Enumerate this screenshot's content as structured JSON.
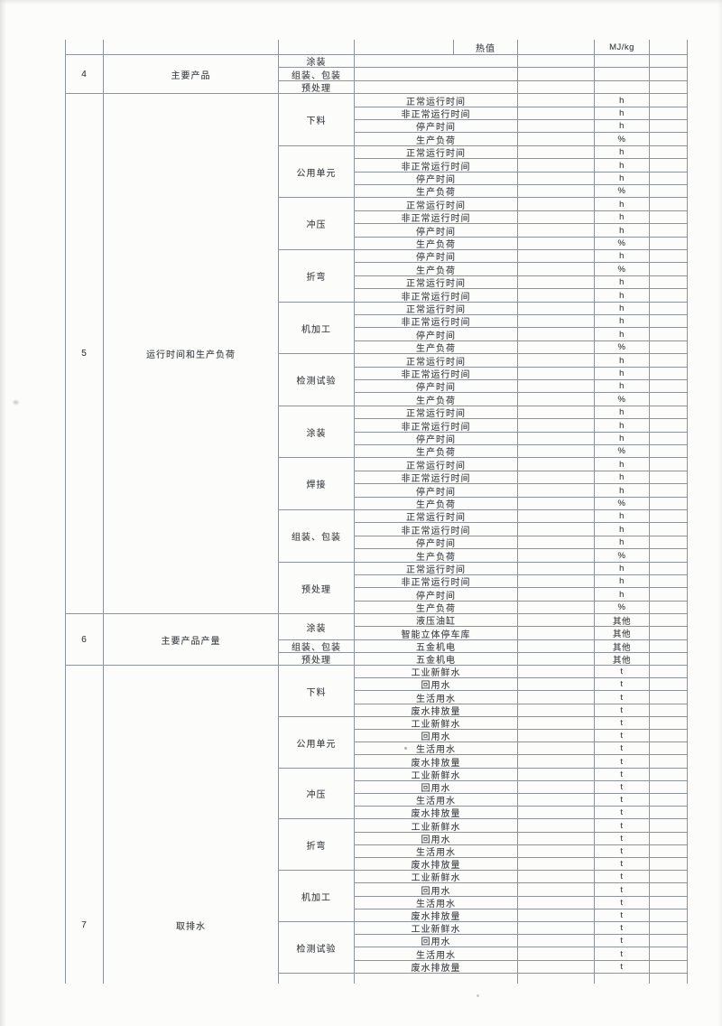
{
  "table": {
    "top_row": {
      "label": "热值",
      "unit": "MJ/kg"
    },
    "sections": [
      {
        "no": "4",
        "category": "主要产品",
        "groups": [
          {
            "process": "涂装",
            "rows": [
              {
                "item": "",
                "unit": ""
              }
            ]
          },
          {
            "process": "组装、包装",
            "rows": [
              {
                "item": "",
                "unit": ""
              }
            ]
          },
          {
            "process": "预处理",
            "rows": [
              {
                "item": "",
                "unit": ""
              }
            ]
          }
        ]
      },
      {
        "no": "5",
        "category": "运行时间和生产负荷",
        "groups": [
          {
            "process": "下料",
            "rows": [
              {
                "item": "正常运行时间",
                "unit": "h"
              },
              {
                "item": "非正常运行时间",
                "unit": "h"
              },
              {
                "item": "停产时间",
                "unit": "h"
              },
              {
                "item": "生产负荷",
                "unit": "%"
              }
            ]
          },
          {
            "process": "公用单元",
            "rows": [
              {
                "item": "正常运行时间",
                "unit": "h"
              },
              {
                "item": "非正常运行时间",
                "unit": "h"
              },
              {
                "item": "停产时间",
                "unit": "h"
              },
              {
                "item": "生产负荷",
                "unit": "%"
              }
            ]
          },
          {
            "process": "冲压",
            "rows": [
              {
                "item": "正常运行时间",
                "unit": "h"
              },
              {
                "item": "非正常运行时间",
                "unit": "h"
              },
              {
                "item": "停产时间",
                "unit": "h"
              },
              {
                "item": "生产负荷",
                "unit": "%"
              }
            ]
          },
          {
            "process": "折弯",
            "rows": [
              {
                "item": "停产时间",
                "unit": "h"
              },
              {
                "item": "生产负荷",
                "unit": "%"
              },
              {
                "item": "正常运行时间",
                "unit": "h"
              },
              {
                "item": "非正常运行时间",
                "unit": "h"
              }
            ]
          },
          {
            "process": "机加工",
            "rows": [
              {
                "item": "正常运行时间",
                "unit": "h"
              },
              {
                "item": "非正常运行时间",
                "unit": "h"
              },
              {
                "item": "停产时间",
                "unit": "h"
              },
              {
                "item": "生产负荷",
                "unit": "%"
              }
            ]
          },
          {
            "process": "检测试验",
            "rows": [
              {
                "item": "正常运行时间",
                "unit": "h"
              },
              {
                "item": "非正常运行时间",
                "unit": "h"
              },
              {
                "item": "停产时间",
                "unit": "h"
              },
              {
                "item": "生产负荷",
                "unit": "%"
              }
            ]
          },
          {
            "process": "涂装",
            "rows": [
              {
                "item": "正常运行时间",
                "unit": "h"
              },
              {
                "item": "非正常运行时间",
                "unit": "h"
              },
              {
                "item": "停产时间",
                "unit": "h"
              },
              {
                "item": "生产负荷",
                "unit": "%"
              }
            ]
          },
          {
            "process": "焊接",
            "rows": [
              {
                "item": "正常运行时间",
                "unit": "h"
              },
              {
                "item": "非正常运行时间",
                "unit": "h"
              },
              {
                "item": "停产时间",
                "unit": "h"
              },
              {
                "item": "生产负荷",
                "unit": "%"
              }
            ]
          },
          {
            "process": "组装、包装",
            "rows": [
              {
                "item": "正常运行时间",
                "unit": "h"
              },
              {
                "item": "非正常运行时间",
                "unit": "h"
              },
              {
                "item": "停产时间",
                "unit": "h"
              },
              {
                "item": "生产负荷",
                "unit": "%"
              }
            ]
          },
          {
            "process": "预处理",
            "rows": [
              {
                "item": "正常运行时间",
                "unit": "h"
              },
              {
                "item": "非正常运行时间",
                "unit": "h"
              },
              {
                "item": "停产时间",
                "unit": "h"
              },
              {
                "item": "生产负荷",
                "unit": "%"
              }
            ]
          }
        ]
      },
      {
        "no": "6",
        "category": "主要产品产量",
        "groups": [
          {
            "process": "涂装",
            "rows": [
              {
                "item": "液压油缸",
                "unit": "其他"
              },
              {
                "item": "智能立体停车库",
                "unit": "其他"
              }
            ]
          },
          {
            "process": "组装、包装",
            "rows": [
              {
                "item": "五金机电",
                "unit": "其他"
              }
            ]
          },
          {
            "process": "预处理",
            "rows": [
              {
                "item": "五金机电",
                "unit": "其他"
              }
            ]
          }
        ]
      },
      {
        "no": "7",
        "category": "取排水",
        "groups": [
          {
            "process": "下料",
            "rows": [
              {
                "item": "工业新鲜水",
                "unit": "t"
              },
              {
                "item": "回用水",
                "unit": "t"
              },
              {
                "item": "生活用水",
                "unit": "t"
              },
              {
                "item": "废水排放量",
                "unit": "t"
              }
            ]
          },
          {
            "process": "公用单元",
            "rows": [
              {
                "item": "工业新鲜水",
                "unit": "t"
              },
              {
                "item": "回用水",
                "unit": "t"
              },
              {
                "item": "生活用水",
                "unit": "t"
              },
              {
                "item": "废水排放量",
                "unit": "t"
              }
            ]
          },
          {
            "process": "冲压",
            "rows": [
              {
                "item": "工业新鲜水",
                "unit": "t"
              },
              {
                "item": "回用水",
                "unit": "t"
              },
              {
                "item": "生活用水",
                "unit": "t"
              },
              {
                "item": "废水排放量",
                "unit": "t"
              }
            ]
          },
          {
            "process": "折弯",
            "rows": [
              {
                "item": "工业新鲜水",
                "unit": "t"
              },
              {
                "item": "回用水",
                "unit": "t"
              },
              {
                "item": "生活用水",
                "unit": "t"
              },
              {
                "item": "废水排放量",
                "unit": "t"
              }
            ]
          },
          {
            "process": "机加工",
            "rows": [
              {
                "item": "工业新鲜水",
                "unit": "t"
              },
              {
                "item": "回用水",
                "unit": "t"
              },
              {
                "item": "生活用水",
                "unit": "t"
              },
              {
                "item": "废水排放量",
                "unit": "t"
              }
            ]
          },
          {
            "process": "检测试验",
            "rows": [
              {
                "item": "工业新鲜水",
                "unit": "t"
              },
              {
                "item": "回用水",
                "unit": "t"
              },
              {
                "item": "生活用水",
                "unit": "t"
              },
              {
                "item": "废水排放量",
                "unit": "t"
              }
            ]
          }
        ]
      }
    ]
  }
}
